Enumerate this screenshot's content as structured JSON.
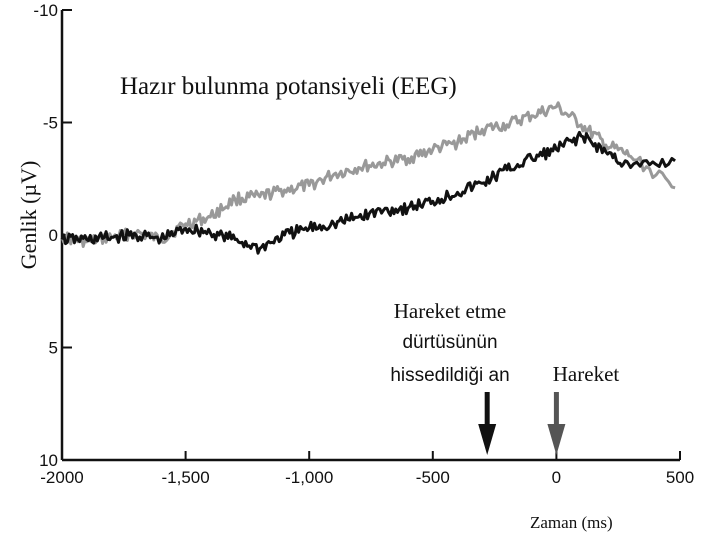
{
  "chart_data": {
    "type": "line",
    "title": "Hazır bulunma potansiyeli (EEG)",
    "xlabel": "Zaman (ms)",
    "ylabel": "Genlik (µV)",
    "xlim": [
      -2000,
      500
    ],
    "ylim": [
      -10,
      10
    ],
    "y_inverted": true,
    "x_ticks": [
      -2000,
      -1500,
      -1000,
      -500,
      0,
      500
    ],
    "x_tick_labels": [
      "-2000",
      "-1,500",
      "-1,000",
      "-500",
      "0",
      "500"
    ],
    "y_ticks": [
      -10,
      -5,
      0,
      5,
      10
    ],
    "y_tick_labels": [
      "-10",
      "-5",
      "0",
      "5",
      "10"
    ],
    "grid": false,
    "series": [
      {
        "color": "#999999",
        "x": [
          -2000,
          -1900,
          -1800,
          -1700,
          -1600,
          -1500,
          -1400,
          -1300,
          -1200,
          -1100,
          -1000,
          -900,
          -800,
          -700,
          -600,
          -500,
          -400,
          -300,
          -200,
          -100,
          0,
          100,
          200,
          300,
          480
        ],
        "y": [
          0.1,
          0.3,
          0.1,
          -0.1,
          0.2,
          -0.5,
          -0.8,
          -1.6,
          -1.7,
          -2.0,
          -2.2,
          -2.7,
          -3.0,
          -3.2,
          -3.4,
          -3.8,
          -4.1,
          -4.7,
          -4.9,
          -5.3,
          -5.7,
          -4.9,
          -4.0,
          -3.5,
          -2.1
        ]
      },
      {
        "color": "#111111",
        "x": [
          -2000,
          -1900,
          -1800,
          -1700,
          -1600,
          -1500,
          -1400,
          -1300,
          -1200,
          -1100,
          -1000,
          -900,
          -800,
          -700,
          -600,
          -500,
          -400,
          -300,
          -200,
          -100,
          0,
          100,
          200,
          300,
          480
        ],
        "y": [
          0.2,
          0.2,
          0.1,
          0.0,
          0.2,
          -0.3,
          -0.1,
          0.2,
          0.6,
          0.0,
          -0.3,
          -0.5,
          -0.8,
          -1.1,
          -1.2,
          -1.5,
          -1.9,
          -2.3,
          -2.9,
          -3.4,
          -3.8,
          -4.4,
          -3.7,
          -3.0,
          -3.3
        ]
      }
    ],
    "annotations": [
      {
        "lines": [
          "Hareket etme",
          "dürtüsünün",
          "hissedildiği an"
        ],
        "x": -280,
        "color": "#111111"
      },
      {
        "lines": [
          "Hareket"
        ],
        "x": 0,
        "color": "#999999"
      }
    ]
  }
}
